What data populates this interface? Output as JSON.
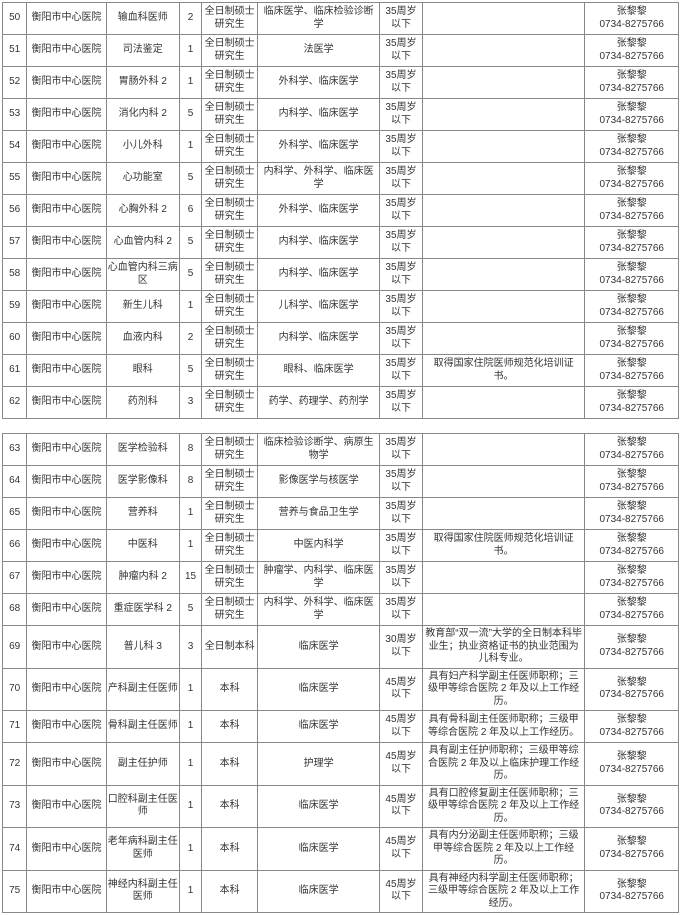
{
  "hospital": "衡阳市中心医院",
  "contact_name": "张黎黎",
  "contact_phone": "0734-8275766",
  "edu_ms": "全日制硕士研究生",
  "edu_bs": "全日制本科",
  "edu_b": "本科",
  "age35": "35周岁以下",
  "age30": "30周岁以下",
  "age45": "45周岁以下",
  "rows_a": [
    {
      "n": "50",
      "dept": "输血科医师",
      "cnt": "2",
      "edu": "全日制硕士研究生",
      "major": "临床医学、临床检验诊断学",
      "age": "35周岁以下",
      "req": ""
    },
    {
      "n": "51",
      "dept": "司法鉴定",
      "cnt": "1",
      "edu": "全日制硕士研究生",
      "major": "法医学",
      "age": "35周岁以下",
      "req": ""
    },
    {
      "n": "52",
      "dept": "胃肠外科 2",
      "cnt": "1",
      "edu": "全日制硕士研究生",
      "major": "外科学、临床医学",
      "age": "35周岁以下",
      "req": ""
    },
    {
      "n": "53",
      "dept": "消化内科 2",
      "cnt": "5",
      "edu": "全日制硕士研究生",
      "major": "内科学、临床医学",
      "age": "35周岁以下",
      "req": ""
    },
    {
      "n": "54",
      "dept": "小儿外科",
      "cnt": "1",
      "edu": "全日制硕士研究生",
      "major": "外科学、临床医学",
      "age": "35周岁以下",
      "req": ""
    },
    {
      "n": "55",
      "dept": "心功能室",
      "cnt": "5",
      "edu": "全日制硕士研究生",
      "major": "内科学、外科学、临床医学",
      "age": "35周岁以下",
      "req": ""
    },
    {
      "n": "56",
      "dept": "心胸外科 2",
      "cnt": "6",
      "edu": "全日制硕士研究生",
      "major": "外科学、临床医学",
      "age": "35周岁以下",
      "req": ""
    },
    {
      "n": "57",
      "dept": "心血管内科 2",
      "cnt": "5",
      "edu": "全日制硕士研究生",
      "major": "内科学、临床医学",
      "age": "35周岁以下",
      "req": ""
    },
    {
      "n": "58",
      "dept": "心血管内科三病区",
      "cnt": "5",
      "edu": "全日制硕士研究生",
      "major": "内科学、临床医学",
      "age": "35周岁以下",
      "req": ""
    },
    {
      "n": "59",
      "dept": "新生儿科",
      "cnt": "1",
      "edu": "全日制硕士研究生",
      "major": "儿科学、临床医学",
      "age": "35周岁以下",
      "req": ""
    },
    {
      "n": "60",
      "dept": "血液内科",
      "cnt": "2",
      "edu": "全日制硕士研究生",
      "major": "内科学、临床医学",
      "age": "35周岁以下",
      "req": ""
    },
    {
      "n": "61",
      "dept": "眼科",
      "cnt": "5",
      "edu": "全日制硕士研究生",
      "major": "眼科、临床医学",
      "age": "35周岁以下",
      "req": "取得国家住院医师规范化培训证书。"
    },
    {
      "n": "62",
      "dept": "药剂科",
      "cnt": "3",
      "edu": "全日制硕士研究生",
      "major": "药学、药理学、药剂学",
      "age": "35周岁以下",
      "req": ""
    }
  ],
  "rows_b": [
    {
      "n": "63",
      "dept": "医学检验科",
      "cnt": "8",
      "edu": "全日制硕士研究生",
      "major": "临床检验诊断学、病原生物学",
      "age": "35周岁以下",
      "req": ""
    },
    {
      "n": "64",
      "dept": "医学影像科",
      "cnt": "8",
      "edu": "全日制硕士研究生",
      "major": "影像医学与核医学",
      "age": "35周岁以下",
      "req": ""
    },
    {
      "n": "65",
      "dept": "营养科",
      "cnt": "1",
      "edu": "全日制硕士研究生",
      "major": "营养与食品卫生学",
      "age": "35周岁以下",
      "req": ""
    },
    {
      "n": "66",
      "dept": "中医科",
      "cnt": "1",
      "edu": "全日制硕士研究生",
      "major": "中医内科学",
      "age": "35周岁以下",
      "req": "取得国家住院医师规范化培训证书。"
    },
    {
      "n": "67",
      "dept": "肿瘤内科 2",
      "cnt": "15",
      "edu": "全日制硕士研究生",
      "major": "肿瘤学、内科学、临床医学",
      "age": "35周岁以下",
      "req": ""
    },
    {
      "n": "68",
      "dept": "重症医学科 2",
      "cnt": "5",
      "edu": "全日制硕士研究生",
      "major": "内科学、外科学、临床医学",
      "age": "35周岁以下",
      "req": ""
    },
    {
      "n": "69",
      "dept": "普儿科 3",
      "cnt": "3",
      "edu": "全日制本科",
      "major": "临床医学",
      "age": "30周岁以下",
      "req": "教育部“双一流”大学的全日制本科毕业生；执业资格证书的执业范围为儿科专业。"
    },
    {
      "n": "70",
      "dept": "产科副主任医师",
      "cnt": "1",
      "edu": "本科",
      "major": "临床医学",
      "age": "45周岁以下",
      "req": "具有妇产科学副主任医师职称；三级甲等综合医院 2 年及以上工作经历。"
    },
    {
      "n": "71",
      "dept": "骨科副主任医师",
      "cnt": "1",
      "edu": "本科",
      "major": "临床医学",
      "age": "45周岁以下",
      "req": "具有骨科副主任医师职称；三级甲等综合医院 2 年及以上工作经历。"
    },
    {
      "n": "72",
      "dept": "副主任护师",
      "cnt": "1",
      "edu": "本科",
      "major": "护理学",
      "age": "45周岁以下",
      "req": "具有副主任护师职称；三级甲等综合医院 2 年及以上临床护理工作经历。"
    },
    {
      "n": "73",
      "dept": "口腔科副主任医师",
      "cnt": "1",
      "edu": "本科",
      "major": "临床医学",
      "age": "45周岁以下",
      "req": "具有口腔修复副主任医师职称；三级甲等综合医院 2 年及以上工作经历。"
    },
    {
      "n": "74",
      "dept": "老年病科副主任医师",
      "cnt": "1",
      "edu": "本科",
      "major": "临床医学",
      "age": "45周岁以下",
      "req": "具有内分泌副主任医师职称；三级甲等综合医院 2 年及以上工作经历。"
    },
    {
      "n": "75",
      "dept": "神经内科副主任医师",
      "cnt": "1",
      "edu": "本科",
      "major": "临床医学",
      "age": "45周岁以下",
      "req": "具有神经内科学副主任医师职称；三级甲等综合医院 2 年及以上工作经历。"
    }
  ]
}
